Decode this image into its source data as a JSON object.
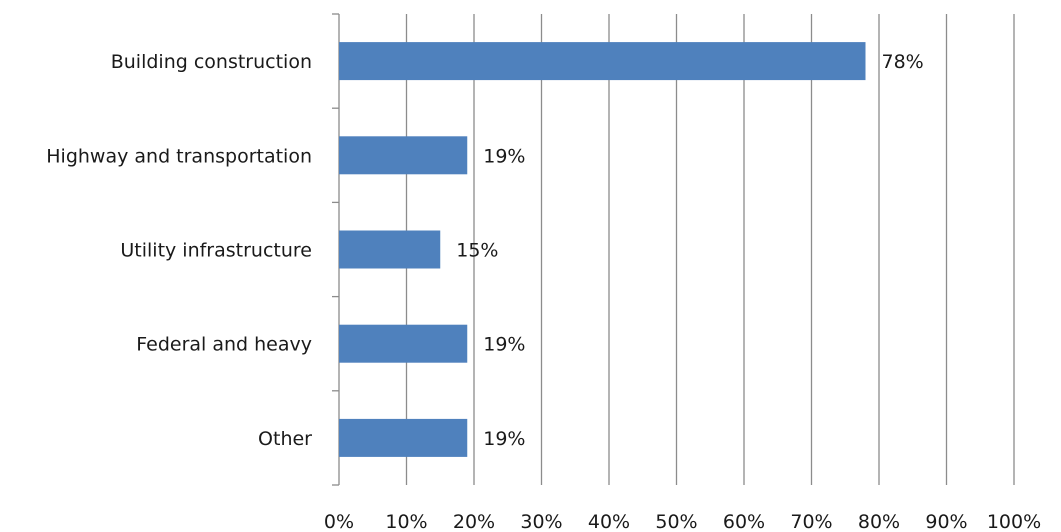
{
  "chart_data": {
    "type": "bar",
    "orientation": "horizontal",
    "categories": [
      "Building construction",
      "Highway and transportation",
      "Utility infrastructure",
      "Federal and heavy",
      "Other"
    ],
    "values": [
      78,
      19,
      15,
      19,
      19
    ],
    "data_labels": [
      "78%",
      "19%",
      "15%",
      "19%",
      "19%"
    ],
    "xlim": [
      0,
      100
    ],
    "x_ticks": [
      0,
      10,
      20,
      30,
      40,
      50,
      60,
      70,
      80,
      90,
      100
    ],
    "x_tick_labels": [
      "0%",
      "10%",
      "20%",
      "30%",
      "40%",
      "50%",
      "60%",
      "70%",
      "80%",
      "90%",
      "100%"
    ],
    "grid": "vertical",
    "legend": "none",
    "title": "",
    "xlabel": "",
    "ylabel": "",
    "bar_color": "#4f81bd",
    "grid_color": "#8c8c8c"
  }
}
